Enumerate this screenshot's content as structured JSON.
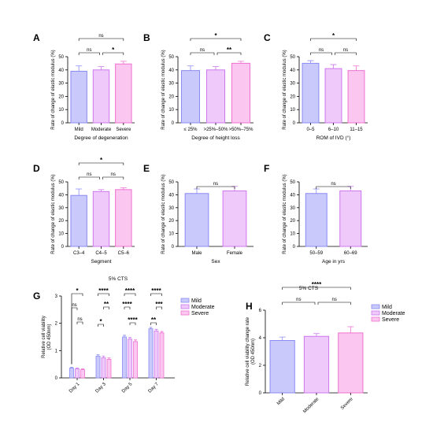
{
  "colors": {
    "blue": "#8b8bf5",
    "blueFill": "#c9c9fb",
    "purple": "#cc77ee",
    "purpleFill": "#efc9f9",
    "pink": "#f070d0",
    "pinkFill": "#fbc6ef"
  },
  "chart_data": [
    {
      "id": "A",
      "type": "bar",
      "categories": [
        "Mild",
        "Moderate",
        "Severe"
      ],
      "values": [
        39,
        40,
        44.5
      ],
      "errors": [
        4,
        2.5,
        2
      ],
      "ylim": [
        0,
        50
      ],
      "yticks": [
        0,
        10,
        20,
        30,
        40,
        50
      ],
      "ylabel": "Rate of change of elastic modulus (%)",
      "xlabel": "Degree of degeneration",
      "annotations": [
        {
          "from": 0,
          "to": 2,
          "text": "ns",
          "level": 2
        },
        {
          "from": 0,
          "to": 1,
          "text": "ns",
          "level": 1
        },
        {
          "from": 1,
          "to": 2,
          "text": "*",
          "level": 1
        }
      ]
    },
    {
      "id": "B",
      "type": "bar",
      "categories": [
        "≤ 25%",
        ">25%–50%",
        ">50%–75%"
      ],
      "values": [
        39.5,
        40,
        45
      ],
      "errors": [
        3.5,
        2.5,
        1.5
      ],
      "ylim": [
        0,
        50
      ],
      "yticks": [
        0,
        10,
        20,
        30,
        40,
        50
      ],
      "ylabel": "Rate of change of elastic modulus (%)",
      "xlabel": "Degree of height loss",
      "annotations": [
        {
          "from": 0,
          "to": 2,
          "text": "*",
          "level": 2
        },
        {
          "from": 0,
          "to": 1,
          "text": "ns",
          "level": 1
        },
        {
          "from": 1,
          "to": 2,
          "text": "**",
          "level": 1
        }
      ]
    },
    {
      "id": "C",
      "type": "bar",
      "categories": [
        "0–5",
        "6–10",
        "11–15"
      ],
      "values": [
        45,
        41,
        39.5
      ],
      "errors": [
        2,
        3,
        3.5
      ],
      "ylim": [
        0,
        50
      ],
      "yticks": [
        0,
        10,
        20,
        30,
        40,
        50
      ],
      "ylabel": "Rate of change of elastic modulus (%)",
      "xlabel": "ROM of IVD (°)",
      "annotations": [
        {
          "from": 0,
          "to": 2,
          "text": "*",
          "level": 2
        },
        {
          "from": 0,
          "to": 1,
          "text": "ns",
          "level": 1
        },
        {
          "from": 1,
          "to": 2,
          "text": "ns",
          "level": 1
        }
      ]
    },
    {
      "id": "D",
      "type": "bar",
      "categories": [
        "C3–4",
        "C4–5",
        "C5–6"
      ],
      "values": [
        39.5,
        42.5,
        44
      ],
      "errors": [
        5,
        1.5,
        1.5
      ],
      "ylim": [
        0,
        50
      ],
      "yticks": [
        0,
        10,
        20,
        30,
        40,
        50
      ],
      "ylabel": "Rate of change of elastic modulus (%)",
      "xlabel": "Segment",
      "annotations": [
        {
          "from": 0,
          "to": 2,
          "text": "*",
          "level": 2
        },
        {
          "from": 0,
          "to": 1,
          "text": "ns",
          "level": 1
        },
        {
          "from": 1,
          "to": 2,
          "text": "ns",
          "level": 1
        }
      ]
    },
    {
      "id": "E",
      "type": "bar",
      "categories": [
        "Male",
        "Female"
      ],
      "values": [
        41,
        43
      ],
      "errors": [
        3.5,
        3.5
      ],
      "ylim": [
        0,
        50
      ],
      "yticks": [
        0,
        10,
        20,
        30,
        40,
        50
      ],
      "ylabel": "Rate of change of elastic modulus (%)",
      "xlabel": "Sex",
      "annotations": [
        {
          "from": 0,
          "to": 1,
          "text": "ns",
          "level": 1
        }
      ]
    },
    {
      "id": "F",
      "type": "bar",
      "categories": [
        "50–59",
        "60–69"
      ],
      "values": [
        41,
        43
      ],
      "errors": [
        3.5,
        3.5
      ],
      "ylim": [
        0,
        50
      ],
      "yticks": [
        0,
        10,
        20,
        30,
        40,
        50
      ],
      "ylabel": "Rate of change of elastic modulus (%)",
      "xlabel": "Age in yrs",
      "annotations": [
        {
          "from": 0,
          "to": 1,
          "text": "ns",
          "level": 1
        }
      ]
    },
    {
      "id": "G",
      "type": "bar",
      "title": "5% CTS",
      "categories": [
        "Day 1",
        "Day 3",
        "Day 5",
        "Day 7"
      ],
      "series": [
        {
          "name": "Mild",
          "values": [
            0.36,
            0.8,
            1.5,
            1.8
          ],
          "errors": [
            0.03,
            0.05,
            0.06,
            0.05
          ]
        },
        {
          "name": "Moderate",
          "values": [
            0.33,
            0.74,
            1.42,
            1.72
          ],
          "errors": [
            0.03,
            0.06,
            0.06,
            0.06
          ]
        },
        {
          "name": "Severe",
          "values": [
            0.3,
            0.68,
            1.33,
            1.65
          ],
          "errors": [
            0.03,
            0.05,
            0.06,
            0.05
          ]
        }
      ],
      "ylim": [
        0,
        3
      ],
      "yticks": [
        0,
        1,
        2,
        3
      ],
      "ylabel": "Relative cell viability (OD 450nm)",
      "annotations": [
        {
          "group": 0,
          "from": 0,
          "to": 2,
          "text": "*",
          "level": 3
        },
        {
          "group": 0,
          "from": 0,
          "to": 1,
          "text": "ns",
          "level": 2
        },
        {
          "group": 0,
          "from": 1,
          "to": 2,
          "text": "ns",
          "level": 1
        },
        {
          "group": 1,
          "from": 0,
          "to": 2,
          "text": "****",
          "level": 3
        },
        {
          "group": 1,
          "from": 1,
          "to": 2,
          "text": "**",
          "level": 2
        },
        {
          "group": 1,
          "from": 0,
          "to": 1,
          "text": "*",
          "level": 1
        },
        {
          "group": 2,
          "from": 0,
          "to": 2,
          "text": "****",
          "level": 3
        },
        {
          "group": 2,
          "from": 0,
          "to": 1,
          "text": "****",
          "level": 2
        },
        {
          "group": 2,
          "from": 1,
          "to": 2,
          "text": "****",
          "level": 1
        },
        {
          "group": 3,
          "from": 0,
          "to": 2,
          "text": "****",
          "level": 3
        },
        {
          "group": 3,
          "from": 1,
          "to": 2,
          "text": "***",
          "level": 2
        },
        {
          "group": 3,
          "from": 0,
          "to": 1,
          "text": "**",
          "level": 1
        }
      ],
      "legend": "top-right"
    },
    {
      "id": "H",
      "type": "bar",
      "title": "5% CTS",
      "categories": [
        "Mild",
        "Moderate",
        "Severe"
      ],
      "values": [
        3.8,
        4.1,
        4.35
      ],
      "errors": [
        0.25,
        0.2,
        0.45
      ],
      "ylim": [
        0,
        6
      ],
      "yticks": [
        0,
        2,
        4,
        6
      ],
      "ylabel": "Relative cell viability change rate (OD 450nm)",
      "legendItems": [
        "Mild",
        "Moderate",
        "Severe"
      ],
      "annotations": [
        {
          "from": 0,
          "to": 2,
          "text": "****",
          "level": 2
        },
        {
          "from": 0,
          "to": 1,
          "text": "ns",
          "level": 1
        },
        {
          "from": 1,
          "to": 2,
          "text": "ns",
          "level": 1
        }
      ],
      "legend": "top-right"
    }
  ]
}
